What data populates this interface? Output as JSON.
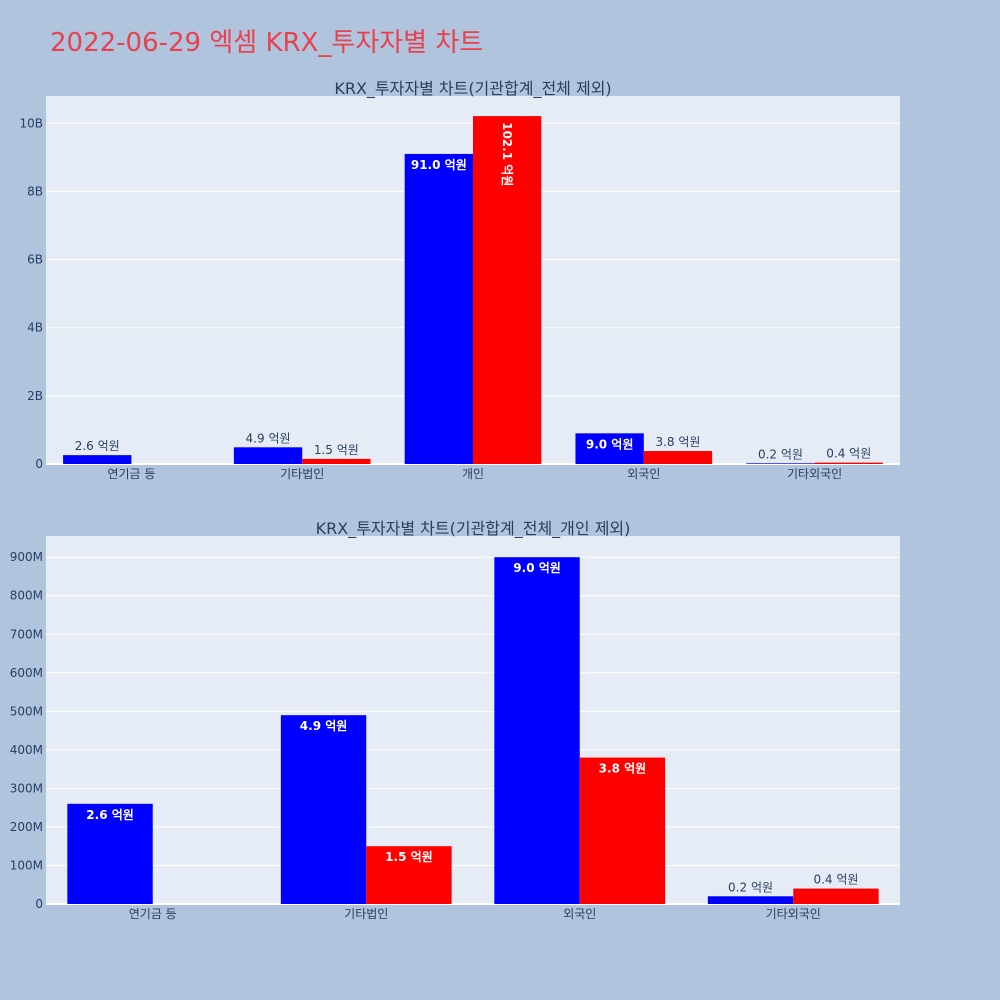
{
  "page_title": "2022-06-29 엑셈 KRX_투자자별 차트",
  "colors": {
    "background": "#b0c4de",
    "plot_bg": "#e5ecf6",
    "title": "#e8424f",
    "series_1": "#0000ff",
    "series_2": "#ff0000"
  },
  "chart_data": [
    {
      "type": "bar",
      "title": "KRX_투자자별 차트(기관합계_전체 제외)",
      "categories": [
        "연기금 등",
        "기타법인",
        "개인",
        "외국인",
        "기타외국인"
      ],
      "series": [
        {
          "color": "#0000ff",
          "values": [
            260000000,
            490000000,
            9100000000,
            900000000,
            20000000
          ],
          "labels": [
            "2.6 억원",
            "4.9 억원",
            "91.0 억원",
            "9.0 억원",
            "0.2 억원"
          ]
        },
        {
          "color": "#ff0000",
          "values": [
            null,
            150000000,
            10210000000,
            380000000,
            40000000
          ],
          "labels": [
            "",
            "1.5 억원",
            "102.1 억원",
            "3.8 억원",
            "0.4 억원"
          ]
        }
      ],
      "ylim": [
        0,
        10800000000
      ],
      "yticks": [
        0,
        2000000000,
        4000000000,
        6000000000,
        8000000000,
        10000000000
      ],
      "ytick_labels": [
        "0",
        "2B",
        "4B",
        "6B",
        "8B",
        "10B"
      ],
      "grid": true
    },
    {
      "type": "bar",
      "title": "KRX_투자자별 차트(기관합계_전체_개인 제외)",
      "categories": [
        "연기금 등",
        "기타법인",
        "외국인",
        "기타외국인"
      ],
      "series": [
        {
          "color": "#0000ff",
          "values": [
            260000000,
            490000000,
            900000000,
            20000000
          ],
          "labels": [
            "2.6 억원",
            "4.9 억원",
            "9.0 억원",
            "0.2 억원"
          ]
        },
        {
          "color": "#ff0000",
          "values": [
            null,
            150000000,
            380000000,
            40000000
          ],
          "labels": [
            "",
            "1.5 억원",
            "3.8 억원",
            "0.4 억원"
          ]
        }
      ],
      "ylim": [
        0,
        955000000
      ],
      "yticks": [
        0,
        100000000,
        200000000,
        300000000,
        400000000,
        500000000,
        600000000,
        700000000,
        800000000,
        900000000
      ],
      "ytick_labels": [
        "0",
        "100M",
        "200M",
        "300M",
        "400M",
        "500M",
        "600M",
        "700M",
        "800M",
        "900M"
      ],
      "grid": true
    }
  ]
}
